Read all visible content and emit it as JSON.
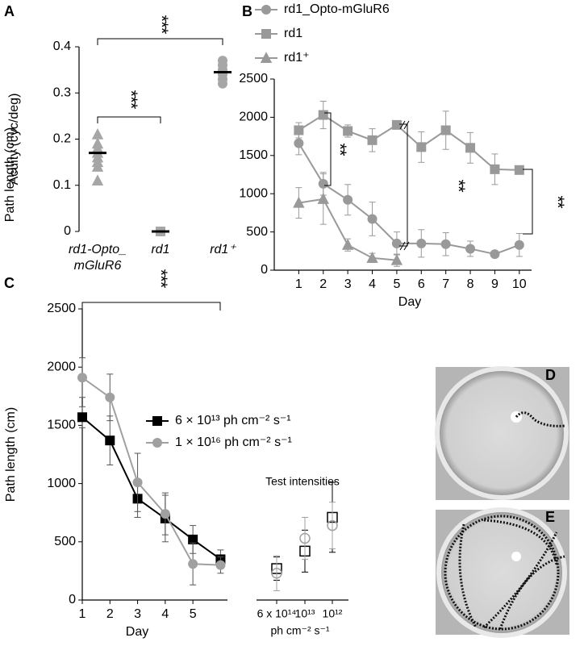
{
  "chart_data": [
    {
      "type": "dot",
      "panel": "A",
      "ylabel": "Acuity (cyc/deg)",
      "categories": [
        "rd1-Opto_ mGluR6",
        "rd1",
        "rd1⁺"
      ],
      "points": [
        [
          0.21,
          0.19,
          0.18,
          0.17,
          0.16,
          0.15,
          0.14,
          0.11
        ],
        [
          0,
          0,
          0
        ],
        [
          0.37,
          0.36,
          0.35,
          0.34,
          0.33,
          0.32
        ]
      ],
      "means": [
        0.17,
        0,
        0.345
      ],
      "color": "#a6a6a6",
      "mean_color": "#000000",
      "ylim": [
        0,
        0.4
      ],
      "yticks": [
        0,
        0.1,
        0.2,
        0.3,
        0.4
      ],
      "annotations": [
        "***",
        "***"
      ]
    },
    {
      "type": "line",
      "panel": "B",
      "xlabel": "Day",
      "ylabel": "Path length (cm)",
      "x": [
        1,
        2,
        3,
        4,
        5,
        6,
        7,
        8,
        9,
        10
      ],
      "series": [
        {
          "name": "rd1_Opto-mGluR6",
          "color": "#999999",
          "marker": "circle",
          "values": [
            1660,
            1130,
            920,
            670,
            350,
            350,
            340,
            280,
            210,
            330
          ],
          "errors": [
            150,
            150,
            200,
            220,
            150,
            180,
            150,
            100,
            20,
            150
          ]
        },
        {
          "name": "rd1",
          "color": "#999999",
          "marker": "square",
          "values": [
            1830,
            2030,
            1820,
            1700,
            1900,
            1610,
            1830,
            1600,
            1320,
            1310
          ],
          "errors": [
            100,
            180,
            80,
            150,
            50,
            200,
            250,
            200,
            200,
            20
          ]
        },
        {
          "name": "rd1⁺",
          "color": "#999999",
          "marker": "triangle",
          "values": [
            880,
            930,
            330,
            160,
            130,
            null,
            null,
            null,
            null,
            null
          ],
          "errors": [
            200,
            330,
            80,
            60,
            80,
            null,
            null,
            null,
            null,
            null
          ]
        }
      ],
      "xlim": [
        0,
        10.5
      ],
      "xticks": [
        1,
        2,
        3,
        4,
        5,
        6,
        7,
        8,
        9,
        10
      ],
      "ylim": [
        0,
        2500
      ],
      "yticks": [
        0,
        500,
        1000,
        1500,
        2000,
        2500
      ],
      "annotations": [
        "**",
        "**",
        "**"
      ]
    },
    {
      "type": "line",
      "panel": "C",
      "xlabel": "Day",
      "ylabel": "Path length (cm)",
      "x": [
        1,
        2,
        3,
        4,
        5,
        6
      ],
      "series": [
        {
          "name": "6 × 10¹³ ph cm⁻² s⁻¹",
          "color": "#000000",
          "marker": "square",
          "values": [
            1570,
            1370,
            870,
            700,
            520,
            350
          ],
          "errors": [
            90,
            210,
            160,
            200,
            120,
            80
          ]
        },
        {
          "name": "1 × 10¹⁶ ph cm⁻² s⁻¹",
          "color": "#a0a0a0",
          "marker": "circle",
          "values": [
            1910,
            1740,
            1010,
            740,
            310,
            300
          ],
          "errors": [
            170,
            200,
            250,
            180,
            180,
            70
          ]
        }
      ],
      "xlim": [
        1,
        6.25
      ],
      "xticks": [
        1,
        2,
        3,
        4,
        5
      ],
      "ylim": [
        0,
        2500
      ],
      "yticks": [
        0,
        500,
        1000,
        1500,
        2000,
        2500
      ],
      "annotations": [
        "***"
      ]
    },
    {
      "type": "scatter",
      "title": "Test intensities",
      "categories": [
        "6 x 10¹⁴",
        "10¹³",
        "10¹²"
      ],
      "xlabel": "ph cm⁻² s⁻¹",
      "series": [
        {
          "color": "#000000",
          "marker": "square",
          "values": [
            270,
            420,
            710
          ],
          "errors": [
            100,
            180,
            300
          ]
        },
        {
          "color": "#a0a0a0",
          "marker": "circle",
          "values": [
            230,
            530,
            640
          ],
          "errors": [
            150,
            180,
            200
          ]
        }
      ],
      "ylim": [
        0,
        2500
      ]
    }
  ],
  "photos": [
    {
      "panel": "D"
    },
    {
      "panel": "E"
    }
  ]
}
